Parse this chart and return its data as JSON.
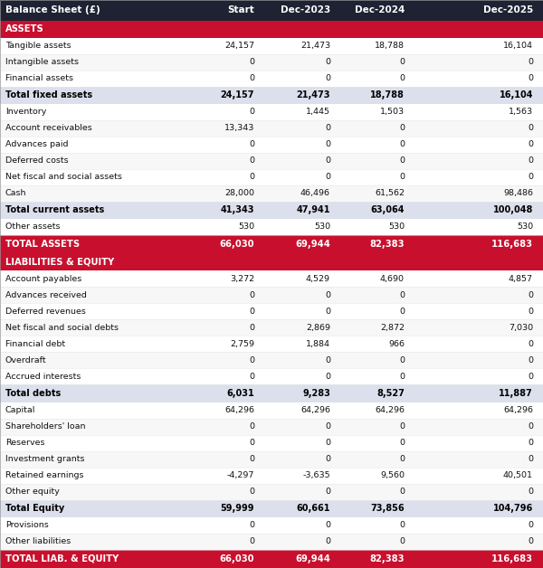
{
  "columns": [
    "Balance Sheet (£)",
    "Start",
    "Dec-2023",
    "Dec-2024",
    "Dec-2025"
  ],
  "header_bg": "#1e2233",
  "header_fg": "#ffffff",
  "section_red_bg": "#c8102e",
  "section_red_fg": "#ffffff",
  "subtotal_bg": "#dce0ec",
  "subtotal_fg": "#000000",
  "total_red_bg": "#c8102e",
  "total_red_fg": "#ffffff",
  "rows": [
    {
      "label": "ASSETS",
      "values": [
        "",
        "",
        "",
        ""
      ],
      "type": "section_header"
    },
    {
      "label": "Tangible assets",
      "values": [
        "24,157",
        "21,473",
        "18,788",
        "16,104"
      ],
      "type": "normal"
    },
    {
      "label": "Intangible assets",
      "values": [
        "0",
        "0",
        "0",
        "0"
      ],
      "type": "normal"
    },
    {
      "label": "Financial assets",
      "values": [
        "0",
        "0",
        "0",
        "0"
      ],
      "type": "normal"
    },
    {
      "label": "Total fixed assets",
      "values": [
        "24,157",
        "21,473",
        "18,788",
        "16,104"
      ],
      "type": "subtotal"
    },
    {
      "label": "Inventory",
      "values": [
        "0",
        "1,445",
        "1,503",
        "1,563"
      ],
      "type": "normal"
    },
    {
      "label": "Account receivables",
      "values": [
        "13,343",
        "0",
        "0",
        "0"
      ],
      "type": "normal"
    },
    {
      "label": "Advances paid",
      "values": [
        "0",
        "0",
        "0",
        "0"
      ],
      "type": "normal"
    },
    {
      "label": "Deferred costs",
      "values": [
        "0",
        "0",
        "0",
        "0"
      ],
      "type": "normal"
    },
    {
      "label": "Net fiscal and social assets",
      "values": [
        "0",
        "0",
        "0",
        "0"
      ],
      "type": "normal"
    },
    {
      "label": "Cash",
      "values": [
        "28,000",
        "46,496",
        "61,562",
        "98,486"
      ],
      "type": "normal"
    },
    {
      "label": "Total current assets",
      "values": [
        "41,343",
        "47,941",
        "63,064",
        "100,048"
      ],
      "type": "subtotal"
    },
    {
      "label": "Other assets",
      "values": [
        "530",
        "530",
        "530",
        "530"
      ],
      "type": "normal"
    },
    {
      "label": "TOTAL ASSETS",
      "values": [
        "66,030",
        "69,944",
        "82,383",
        "116,683"
      ],
      "type": "total_red"
    },
    {
      "label": "LIABILITIES & EQUITY",
      "values": [
        "",
        "",
        "",
        ""
      ],
      "type": "section_header"
    },
    {
      "label": "Account payables",
      "values": [
        "3,272",
        "4,529",
        "4,690",
        "4,857"
      ],
      "type": "normal"
    },
    {
      "label": "Advances received",
      "values": [
        "0",
        "0",
        "0",
        "0"
      ],
      "type": "normal"
    },
    {
      "label": "Deferred revenues",
      "values": [
        "0",
        "0",
        "0",
        "0"
      ],
      "type": "normal"
    },
    {
      "label": "Net fiscal and social debts",
      "values": [
        "0",
        "2,869",
        "2,872",
        "7,030"
      ],
      "type": "normal"
    },
    {
      "label": "Financial debt",
      "values": [
        "2,759",
        "1,884",
        "966",
        "0"
      ],
      "type": "normal"
    },
    {
      "label": "Overdraft",
      "values": [
        "0",
        "0",
        "0",
        "0"
      ],
      "type": "normal"
    },
    {
      "label": "Accrued interests",
      "values": [
        "0",
        "0",
        "0",
        "0"
      ],
      "type": "normal"
    },
    {
      "label": "Total debts",
      "values": [
        "6,031",
        "9,283",
        "8,527",
        "11,887"
      ],
      "type": "subtotal"
    },
    {
      "label": "Capital",
      "values": [
        "64,296",
        "64,296",
        "64,296",
        "64,296"
      ],
      "type": "normal"
    },
    {
      "label": "Shareholders' loan",
      "values": [
        "0",
        "0",
        "0",
        "0"
      ],
      "type": "normal"
    },
    {
      "label": "Reserves",
      "values": [
        "0",
        "0",
        "0",
        "0"
      ],
      "type": "normal"
    },
    {
      "label": "Investment grants",
      "values": [
        "0",
        "0",
        "0",
        "0"
      ],
      "type": "normal"
    },
    {
      "label": "Retained earnings",
      "values": [
        "-4,297",
        "-3,635",
        "9,560",
        "40,501"
      ],
      "type": "normal"
    },
    {
      "label": "Other equity",
      "values": [
        "0",
        "0",
        "0",
        "0"
      ],
      "type": "normal"
    },
    {
      "label": "Total Equity",
      "values": [
        "59,999",
        "60,661",
        "73,856",
        "104,796"
      ],
      "type": "subtotal"
    },
    {
      "label": "Provisions",
      "values": [
        "0",
        "0",
        "0",
        "0"
      ],
      "type": "normal"
    },
    {
      "label": "Other liabilities",
      "values": [
        "0",
        "0",
        "0",
        "0"
      ],
      "type": "normal"
    },
    {
      "label": "TOTAL LIAB. & EQUITY",
      "values": [
        "66,030",
        "69,944",
        "82,383",
        "116,683"
      ],
      "type": "total_red"
    }
  ]
}
